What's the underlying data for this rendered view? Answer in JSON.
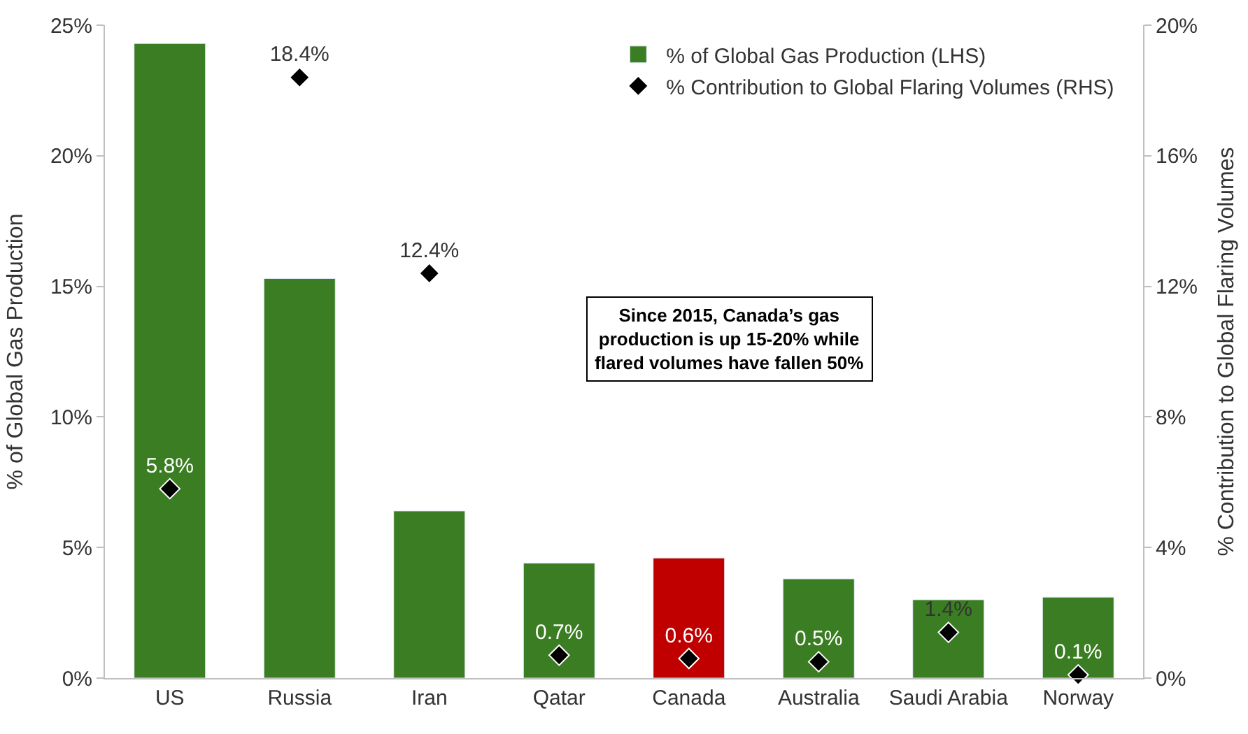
{
  "chart_data": {
    "type": "bar",
    "categories": [
      "US",
      "Russia",
      "Iran",
      "Qatar",
      "Canada",
      "Australia",
      "Saudi Arabia",
      "Norway"
    ],
    "ylabel": "% of Global Gas Production",
    "y2label": "% Contribution to Global Flaring Volumes",
    "series": [
      {
        "name": "% of Global Gas Production (LHS)",
        "color": "#3a7d22",
        "colors": [
          "#3a7d22",
          "#3a7d22",
          "#3a7d22",
          "#3a7d22",
          "#c00000",
          "#3a7d22",
          "#3a7d22",
          "#3a7d22"
        ],
        "values": [
          24.3,
          15.3,
          6.4,
          4.4,
          4.6,
          3.8,
          3.0,
          3.1
        ]
      },
      {
        "name": "% Contribution to Global Flaring Volumes (RHS)",
        "type": "scatter",
        "axis": "y2",
        "color": "#000000",
        "marker": "diamond",
        "values": [
          5.8,
          18.4,
          12.4,
          0.7,
          0.6,
          0.5,
          1.4,
          0.1
        ],
        "value_labels": [
          "5.8%",
          "18.4%",
          "12.4%",
          "0.7%",
          "0.6%",
          "0.5%",
          "1.4%",
          "0.1%"
        ]
      }
    ],
    "ylim": [
      0,
      25
    ],
    "yticks": [
      {
        "value": 0,
        "label": "0%"
      },
      {
        "value": 5,
        "label": "5%"
      },
      {
        "value": 10,
        "label": "10%"
      },
      {
        "value": 15,
        "label": "15%"
      },
      {
        "value": 20,
        "label": "20%"
      },
      {
        "value": 25,
        "label": "25%"
      }
    ],
    "y2lim": [
      0,
      20
    ],
    "y2ticks": [
      {
        "value": 0,
        "label": "0%"
      },
      {
        "value": 4,
        "label": "4%"
      },
      {
        "value": 8,
        "label": "8%"
      },
      {
        "value": 12,
        "label": "12%"
      },
      {
        "value": 16,
        "label": "16%"
      },
      {
        "value": 20,
        "label": "20%"
      }
    ],
    "annotations": [
      "Since 2015, Canada’s gas\nproduction is up 15-20% while\nflared volumes have fallen 50%"
    ],
    "legend": "top right"
  }
}
